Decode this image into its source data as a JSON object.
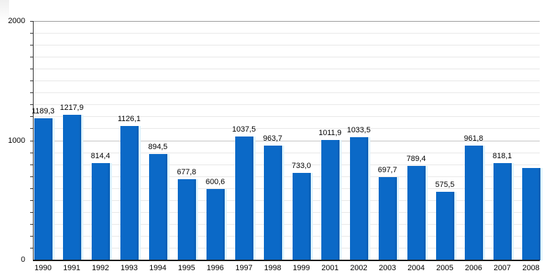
{
  "chart_data": {
    "type": "bar",
    "categories": [
      "1990",
      "1991",
      "1992",
      "1993",
      "1994",
      "1995",
      "1996",
      "1997",
      "1998",
      "1999",
      "2001",
      "2002",
      "2003",
      "2004",
      "2005",
      "2006",
      "2007",
      "2008"
    ],
    "values": [
      1189.3,
      1217.9,
      814.4,
      1126.1,
      894.5,
      677.8,
      600.6,
      1037.5,
      963.7,
      733.0,
      1011.9,
      1033.5,
      697.7,
      789.4,
      575.5,
      961.8,
      818.1,
      775.0
    ],
    "bar_labels": [
      "1189,3",
      "1217,9",
      "814,4",
      "1126,1",
      "894,5",
      "677,8",
      "600,6",
      "1037,5",
      "963,7",
      "733,0",
      "1011,9",
      "1033,5",
      "697,7",
      "789,4",
      "575,5",
      "961,8",
      "818,1",
      ""
    ],
    "title": "",
    "xlabel": "",
    "ylabel": "",
    "ylim": [
      0,
      2000
    ],
    "yticks": [
      {
        "value": 0,
        "label": "0"
      },
      {
        "value": 1000,
        "label": "1000"
      },
      {
        "value": 2000,
        "label": "2000"
      }
    ],
    "grid": "horizontal",
    "grid_step": 100,
    "legend": "none",
    "colors": {
      "bar": "#0b69c7",
      "bar_edge": "#0a5cb0",
      "bar_halo": "#dff4fd",
      "grid_minor": "#e8e8e8",
      "grid_mid": "#c6c6c6",
      "grid_major": "#9b9b9b",
      "axis": "#333333",
      "text": "#000000"
    }
  }
}
